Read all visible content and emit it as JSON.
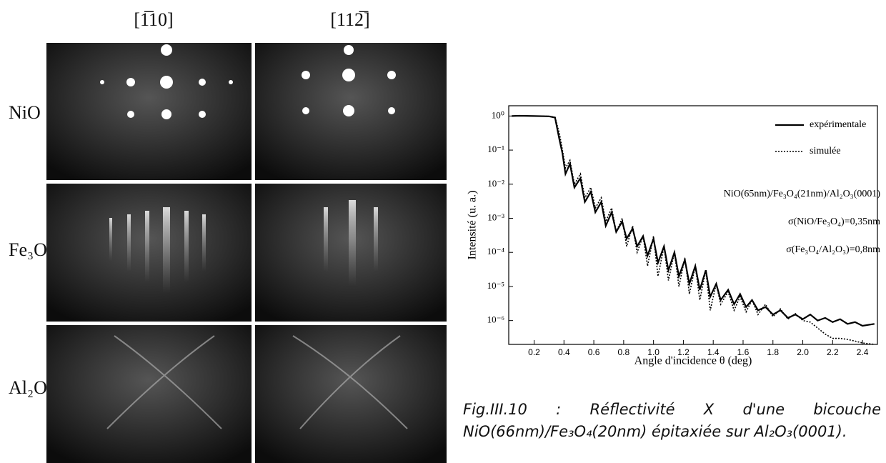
{
  "figure": {
    "columns": [
      "[1̅10]",
      "[112̅]"
    ],
    "rows": [
      "NiO",
      "Fe₃O₄",
      "Al₂O₃"
    ]
  },
  "chart_data": {
    "type": "line",
    "xlabel": "Angle d'incidence θ (deg)",
    "ylabel": "Intensité (u. a.)",
    "log_y": true,
    "xlim": [
      0.03,
      2.5
    ],
    "ylim": [
      2e-07,
      2
    ],
    "xticks": [
      0.2,
      0.4,
      0.6,
      0.8,
      {
        "value": 1,
        "label": "1.0"
      },
      1.2,
      1.4,
      1.6,
      1.8,
      {
        "value": 2,
        "label": "2.0"
      },
      2.2,
      2.4
    ],
    "yticks": [
      {
        "value": 1,
        "label": "10⁰"
      },
      {
        "value": 0.1,
        "label": "10⁻¹"
      },
      {
        "value": 0.01,
        "label": "10⁻²"
      },
      {
        "value": 0.001,
        "label": "10⁻³"
      },
      {
        "value": 0.0001,
        "label": "10⁻⁴"
      },
      {
        "value": 1e-05,
        "label": "10⁻⁵"
      },
      {
        "value": 1e-06,
        "label": "10⁻⁶"
      }
    ],
    "x": [
      0.05,
      0.1,
      0.2,
      0.3,
      0.34,
      0.37,
      0.39,
      0.41,
      0.44,
      0.47,
      0.51,
      0.54,
      0.58,
      0.61,
      0.65,
      0.68,
      0.72,
      0.75,
      0.79,
      0.82,
      0.86,
      0.89,
      0.93,
      0.96,
      1.0,
      1.03,
      1.07,
      1.1,
      1.14,
      1.17,
      1.21,
      1.24,
      1.28,
      1.31,
      1.35,
      1.38,
      1.42,
      1.45,
      1.5,
      1.54,
      1.58,
      1.62,
      1.66,
      1.7,
      1.75,
      1.8,
      1.85,
      1.9,
      1.95,
      2.0,
      2.05,
      2.1,
      2.15,
      2.2,
      2.25,
      2.3,
      2.35,
      2.4,
      2.48
    ],
    "series": [
      {
        "name": "expérimentale",
        "color": "#000000",
        "style": "solid",
        "values": [
          1,
          1.02,
          1,
          0.98,
          0.9,
          0.2,
          0.08,
          0.02,
          0.04,
          0.008,
          0.015,
          0.003,
          0.006,
          0.0015,
          0.003,
          0.0006,
          0.0015,
          0.0004,
          0.0008,
          0.00025,
          0.0005,
          0.00015,
          0.0003,
          8e-05,
          0.00025,
          5e-05,
          0.00015,
          3e-05,
          0.0001,
          2e-05,
          6e-05,
          1.2e-05,
          4e-05,
          8e-06,
          3e-05,
          5e-06,
          1.2e-05,
          4e-06,
          8e-06,
          3e-06,
          6e-06,
          2.5e-06,
          4e-06,
          2e-06,
          2.5e-06,
          1.5e-06,
          2e-06,
          1.2e-06,
          1.5e-06,
          1.1e-06,
          1.5e-06,
          1e-06,
          1.2e-06,
          9e-07,
          1.1e-06,
          8e-07,
          9e-07,
          7e-07,
          8e-07
        ]
      },
      {
        "name": "simulée",
        "color": "#000000",
        "style": "dotted",
        "values": [
          1,
          1.02,
          1,
          0.98,
          0.92,
          0.3,
          0.1,
          0.03,
          0.05,
          0.01,
          0.02,
          0.004,
          0.008,
          0.002,
          0.004,
          0.0008,
          0.002,
          0.0004,
          0.001,
          0.00015,
          0.0006,
          0.0001,
          0.0003,
          4e-05,
          0.0003,
          2e-05,
          0.00015,
          1.5e-05,
          0.0001,
          1e-05,
          7e-05,
          6e-06,
          4e-05,
          4e-06,
          3e-05,
          2e-06,
          1.2e-05,
          3e-06,
          7e-06,
          2e-06,
          5e-06,
          1.8e-06,
          4e-06,
          1.5e-06,
          3e-06,
          1.3e-06,
          2.2e-06,
          1.1e-06,
          1.6e-06,
          1e-06,
          9e-07,
          6e-07,
          4e-07,
          3e-07,
          3e-07,
          2.8e-07,
          2.5e-07,
          2.2e-07,
          2e-07
        ]
      }
    ],
    "annotations": [
      "NiO(65nm)/Fe₃O₄(21nm)/Al₂O₃(0001)",
      "σ(NiO/Fe₃O₄)=0,35nm",
      "σ(Fe₃O₄/Al₂O₃)=0,8nm"
    ]
  },
  "caption": "Fig.III.10 : Réflectivité X d'une bicouche NiO(66nm)/Fe₃O₄(20nm) épitaxiée sur Al₂O₃(0001)."
}
